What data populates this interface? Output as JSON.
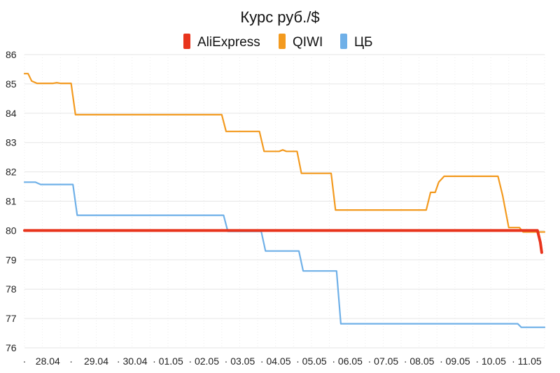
{
  "chart_data": {
    "type": "line",
    "title": "Курс руб./$",
    "xlabel": "",
    "ylabel": "",
    "ylim": [
      76,
      86
    ],
    "yticks": [
      76,
      77,
      78,
      79,
      80,
      81,
      82,
      83,
      84,
      85,
      86
    ],
    "xlim": [
      0,
      14.5
    ],
    "xtick_labels": [
      {
        "label": "·",
        "x": 0
      },
      {
        "label": "28.04",
        "x": 0.65
      },
      {
        "label": "·",
        "x": 1.3
      },
      {
        "label": "29.04",
        "x": 2.0
      },
      {
        "label": "· 30.04",
        "x": 3.0
      },
      {
        "label": "· 01.05",
        "x": 4.0
      },
      {
        "label": "· 02.05",
        "x": 5.0
      },
      {
        "label": "· 03.05",
        "x": 6.0
      },
      {
        "label": "· 04.05",
        "x": 7.0
      },
      {
        "label": "· 05.05",
        "x": 8.0
      },
      {
        "label": "· 06.05",
        "x": 9.0
      },
      {
        "label": "· 07.05",
        "x": 10.0
      },
      {
        "label": "· 08.05",
        "x": 11.0
      },
      {
        "label": "· 09.05",
        "x": 12.0
      },
      {
        "label": "· 10.05",
        "x": 13.0
      },
      {
        "label": "· 11.05",
        "x": 14.0
      }
    ],
    "grid": true,
    "legend_position": "top-center",
    "series": [
      {
        "name": "AliExpress",
        "color": "#e8341c",
        "points": [
          [
            0,
            80.0
          ],
          [
            14.3,
            80.0
          ],
          [
            14.38,
            79.6
          ],
          [
            14.42,
            79.25
          ]
        ]
      },
      {
        "name": "QIWI",
        "color": "#f39a1f",
        "points": [
          [
            0,
            85.35
          ],
          [
            0.1,
            85.35
          ],
          [
            0.2,
            85.1
          ],
          [
            0.35,
            85.02
          ],
          [
            0.8,
            85.02
          ],
          [
            0.9,
            85.04
          ],
          [
            1.0,
            85.02
          ],
          [
            1.3,
            85.02
          ],
          [
            1.42,
            83.95
          ],
          [
            5.5,
            83.95
          ],
          [
            5.62,
            83.38
          ],
          [
            6.55,
            83.38
          ],
          [
            6.68,
            82.7
          ],
          [
            7.1,
            82.7
          ],
          [
            7.2,
            82.75
          ],
          [
            7.3,
            82.7
          ],
          [
            7.6,
            82.7
          ],
          [
            7.72,
            81.95
          ],
          [
            8.55,
            81.95
          ],
          [
            8.67,
            80.7
          ],
          [
            11.2,
            80.7
          ],
          [
            11.32,
            81.3
          ],
          [
            11.45,
            81.3
          ],
          [
            11.55,
            81.65
          ],
          [
            11.7,
            81.85
          ],
          [
            13.2,
            81.85
          ],
          [
            13.33,
            81.2
          ],
          [
            13.5,
            80.1
          ],
          [
            13.8,
            80.1
          ],
          [
            13.9,
            79.95
          ],
          [
            14.5,
            79.95
          ]
        ]
      },
      {
        "name": "ЦБ",
        "color": "#6fb0e8",
        "points": [
          [
            0,
            81.65
          ],
          [
            0.3,
            81.65
          ],
          [
            0.45,
            81.57
          ],
          [
            1.35,
            81.57
          ],
          [
            1.47,
            80.52
          ],
          [
            5.55,
            80.52
          ],
          [
            5.67,
            79.97
          ],
          [
            6.6,
            79.97
          ],
          [
            6.72,
            79.3
          ],
          [
            7.65,
            79.3
          ],
          [
            7.77,
            78.62
          ],
          [
            8.7,
            78.62
          ],
          [
            8.82,
            76.82
          ],
          [
            13.75,
            76.82
          ],
          [
            13.85,
            76.7
          ],
          [
            14.5,
            76.7
          ]
        ]
      }
    ]
  }
}
